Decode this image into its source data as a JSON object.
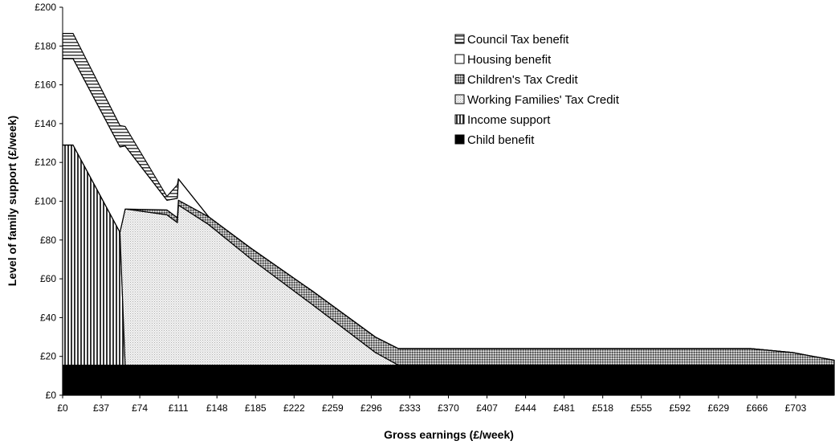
{
  "chart_data": {
    "type": "area",
    "stacked": true,
    "title": "",
    "xlabel": "Gross earnings (£/week)",
    "ylabel": "Level of family support (£/week)",
    "xlim": [
      0,
      740
    ],
    "ylim": [
      0,
      200
    ],
    "x_ticks": [
      "£0",
      "£37",
      "£74",
      "£111",
      "£148",
      "£185",
      "£222",
      "£259",
      "£296",
      "£333",
      "£370",
      "£407",
      "£444",
      "£481",
      "£518",
      "£555",
      "£592",
      "£629",
      "£666",
      "£703"
    ],
    "y_ticks": [
      "£0",
      "£20",
      "£40",
      "£60",
      "£80",
      "£100",
      "£120",
      "£140",
      "£160",
      "£180",
      "£200"
    ],
    "legend_position": "top-right",
    "x": [
      0,
      10,
      55,
      60,
      100,
      110,
      111,
      140,
      180,
      240,
      300,
      322,
      330,
      400,
      500,
      600,
      660,
      700,
      740
    ],
    "series": [
      {
        "name": "Child benefit",
        "pattern": "solid-black",
        "values": [
          15.5,
          15.5,
          15.5,
          15.5,
          15.5,
          15.5,
          15.5,
          15.5,
          15.5,
          15.5,
          15.5,
          15.5,
          15.5,
          15.5,
          15.5,
          15.5,
          15.5,
          15.5,
          15.5
        ]
      },
      {
        "name": "Income support",
        "pattern": "vertical-stripes",
        "values": [
          113.5,
          113.5,
          68.5,
          0,
          0,
          0,
          0,
          0,
          0,
          0,
          0,
          0,
          0,
          0,
          0,
          0,
          0,
          0,
          0
        ]
      },
      {
        "name": "Working Families' Tax Credit",
        "pattern": "light-dots",
        "values": [
          0,
          0,
          0,
          80.5,
          77.5,
          73.5,
          82.5,
          72.5,
          55,
          31,
          6.5,
          0,
          0,
          0,
          0,
          0,
          0,
          0,
          0
        ]
      },
      {
        "name": "Children's Tax Credit",
        "pattern": "dense-crosshatch",
        "values": [
          0,
          0,
          0,
          0,
          2.5,
          2.5,
          2.5,
          4,
          5.5,
          7,
          8,
          8.5,
          8.5,
          8.5,
          8.5,
          8.5,
          8.5,
          6.5,
          2.5
        ]
      },
      {
        "name": "Housing benefit",
        "pattern": "white",
        "values": [
          44.5,
          44.5,
          44,
          32.5,
          5,
          10,
          11,
          0,
          0,
          0,
          0,
          0,
          0,
          0,
          0,
          0,
          0,
          0,
          0
        ]
      },
      {
        "name": "Council Tax benefit",
        "pattern": "horizontal-stripes",
        "values": [
          13,
          13,
          11,
          10,
          2,
          7,
          0,
          0,
          0,
          0,
          0,
          0,
          0,
          0,
          0,
          0,
          0,
          0,
          0
        ]
      }
    ],
    "legend_order": [
      "Council Tax benefit",
      "Housing benefit",
      "Children's Tax Credit",
      "Working Families' Tax Credit",
      "Income support",
      "Child benefit"
    ]
  }
}
